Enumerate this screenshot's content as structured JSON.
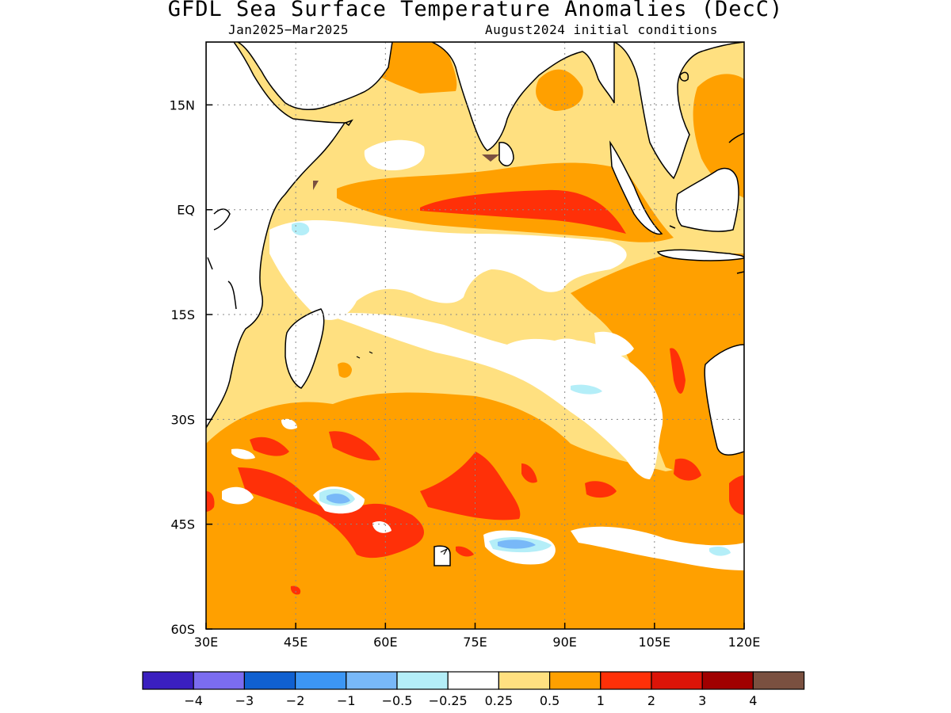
{
  "title": "GFDL Sea Surface Temperature Anomalies (DecC)",
  "subtitle_left": "Jan2025−Mar2025",
  "subtitle_right": "August2024 initial conditions",
  "map": {
    "lon_range": [
      30,
      120
    ],
    "lat_range": [
      -60,
      24
    ],
    "x_ticks": [
      {
        "value": 30,
        "label": "30E"
      },
      {
        "value": 45,
        "label": "45E"
      },
      {
        "value": 60,
        "label": "60E"
      },
      {
        "value": 75,
        "label": "75E"
      },
      {
        "value": 90,
        "label": "90E"
      },
      {
        "value": 105,
        "label": "105E"
      },
      {
        "value": 120,
        "label": "120E"
      }
    ],
    "y_ticks": [
      {
        "value": 15,
        "label": "15N"
      },
      {
        "value": 0,
        "label": "EQ"
      },
      {
        "value": -15,
        "label": "15S"
      },
      {
        "value": -30,
        "label": "30S"
      },
      {
        "value": -45,
        "label": "45S"
      },
      {
        "value": -60,
        "label": "60S"
      }
    ],
    "gridlines": "dotted"
  },
  "colorbar": {
    "colors": [
      "#3a1fbf",
      "#7b6cf0",
      "#1060d0",
      "#3c96f5",
      "#78b8f8",
      "#b4eef8",
      "#ffffff",
      "#ffe080",
      "#ffa000",
      "#ff3008",
      "#dc1408",
      "#a00000",
      "#7a5040"
    ],
    "labels": [
      "−4",
      "−3",
      "−2",
      "−1",
      "−0.5",
      "−0.25",
      "0.25",
      "0.5",
      "1",
      "2",
      "3",
      "4"
    ]
  }
}
